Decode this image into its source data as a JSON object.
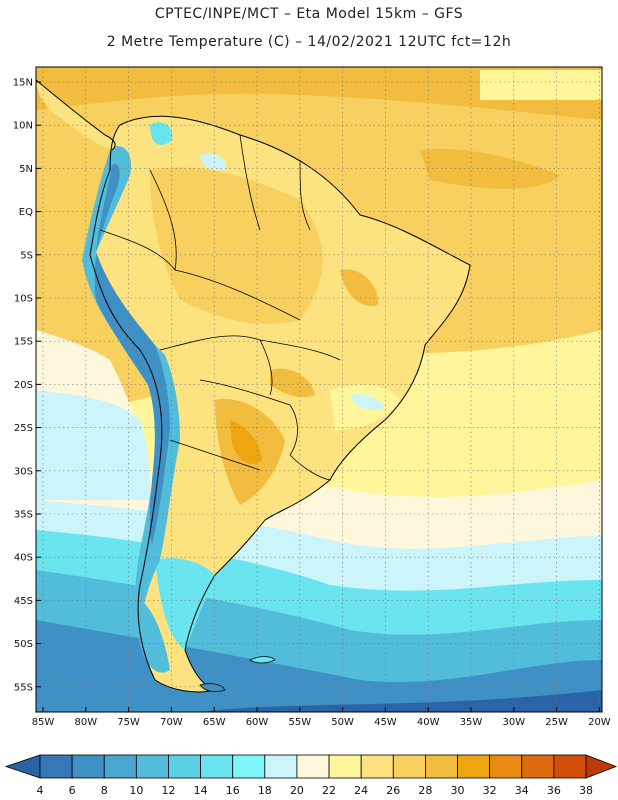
{
  "header": {
    "line1": "CPTEC/INPE/MCT –  Eta Model 15km – GFS",
    "line2": "2 Metre Temperature (C) – 14/02/2021 12UTC fct=12h"
  },
  "map": {
    "lat_ticks": [
      "15N",
      "10N",
      "5N",
      "EQ",
      "5S",
      "10S",
      "15S",
      "20S",
      "25S",
      "30S",
      "35S",
      "40S",
      "45S",
      "50S",
      "55S"
    ],
    "lon_ticks": [
      "85W",
      "80W",
      "75W",
      "70W",
      "65W",
      "60W",
      "55W",
      "50W",
      "45W",
      "40W",
      "35W",
      "30W",
      "25W",
      "20W"
    ]
  },
  "colorbar": {
    "labels": [
      "4",
      "6",
      "8",
      "10",
      "12",
      "14",
      "16",
      "18",
      "20",
      "22",
      "24",
      "26",
      "28",
      "30",
      "32",
      "34",
      "36",
      "38"
    ],
    "colors": [
      "#2b64a6",
      "#3678b7",
      "#3f90c4",
      "#49a6d0",
      "#52bcdb",
      "#5cd0e4",
      "#6ae4ee",
      "#7ef5f8",
      "#ccf4fb",
      "#fff7dc",
      "#fff59a",
      "#fce380",
      "#f7d060",
      "#f2bc3e",
      "#eea512",
      "#ea8a12",
      "#e06b0e",
      "#d2500a",
      "#bc3a06"
    ]
  }
}
